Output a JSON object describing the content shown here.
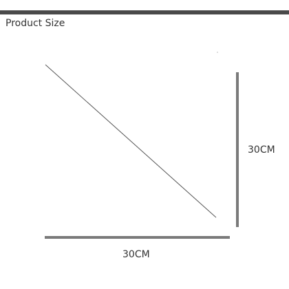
{
  "header": {
    "title": "Product Size"
  },
  "dimensions": {
    "height_label": "30CM",
    "width_label": "30CM"
  },
  "colors": {
    "bar": "#4a4a4a",
    "dimension_rule": "#7a7a7a",
    "diagonal": "#555555",
    "text": "#333333"
  }
}
